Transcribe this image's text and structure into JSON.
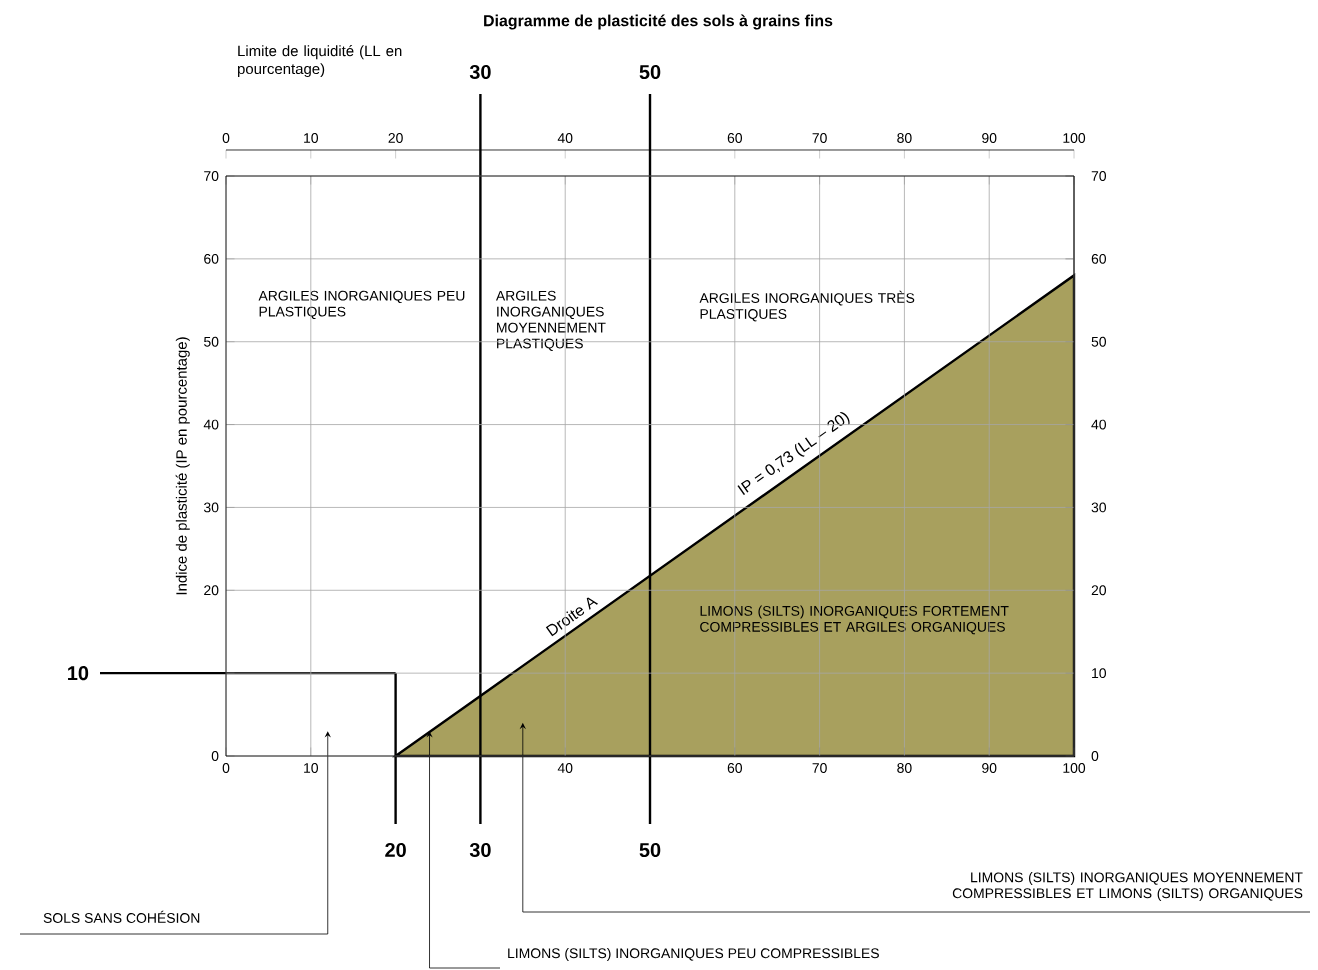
{
  "chart_data": {
    "type": "area",
    "title": "Diagramme de plasticité des sols à grains fins",
    "x2label": "Limite de liquidité (LL en pourcentage)",
    "ylabel": "Indice de plasticité (IP en pourcentage)",
    "series": [
      {
        "name": "Droite A",
        "color": "#a8a05e",
        "x": [
          20,
          100
        ],
        "values": [
          0,
          58
        ]
      }
    ],
    "xlim": [
      0,
      100
    ],
    "xticks": [
      0,
      10,
      40,
      60,
      70,
      80,
      90,
      100
    ],
    "x2lim": [
      0,
      100
    ],
    "x2ticks": [
      0,
      10,
      20,
      40,
      60,
      70,
      80,
      90,
      100
    ],
    "ylim": [
      0,
      70
    ],
    "yticks": [
      0,
      {
        "value": 10,
        "label": null
      },
      20,
      30,
      40,
      50,
      60,
      70
    ],
    "y2lim": [
      0,
      70
    ],
    "y2ticks": [
      0,
      10,
      20,
      30,
      40,
      50,
      60,
      70
    ],
    "grid": true,
    "ref_lines": [
      {
        "axis": "x",
        "value": 20,
        "label": "20"
      },
      {
        "axis": "x",
        "value": 30,
        "label": "30"
      },
      {
        "axis": "x",
        "value": 50,
        "label": "50"
      },
      {
        "axis": "y",
        "value": 10,
        "label": "10"
      }
    ],
    "annotations": [
      "ARGILES INORGANIQUES PEU PLASTIQUES",
      "ARGILES INORGANIQUES MOYENNEMENT PLASTIQUES",
      "ARGILES INORGANIQUES TRÈS PLASTIQUES",
      "LIMONS (SILTS) INORGANIQUES FORTEMENT COMPRESSIBLES ET ARGILES ORGANIQUES",
      {
        "text": "IP = 0,73 (LL – 20)",
        "x": 68,
        "y": 35
      },
      {
        "text": "SOLS SANS COHÉSION",
        "x": 12,
        "y": 3
      },
      {
        "text": "LIMONS (SILTS) INORGANIQUES PEU COMPRESSIBLES",
        "x": 24,
        "y": 3
      },
      {
        "text": "LIMONS (SILTS) INORGANIQUES MOYENNEMENT COMPRESSIBLES ET LIMONS (SILTS) ORGANIQUES",
        "x": 35,
        "y": 4
      }
    ]
  }
}
